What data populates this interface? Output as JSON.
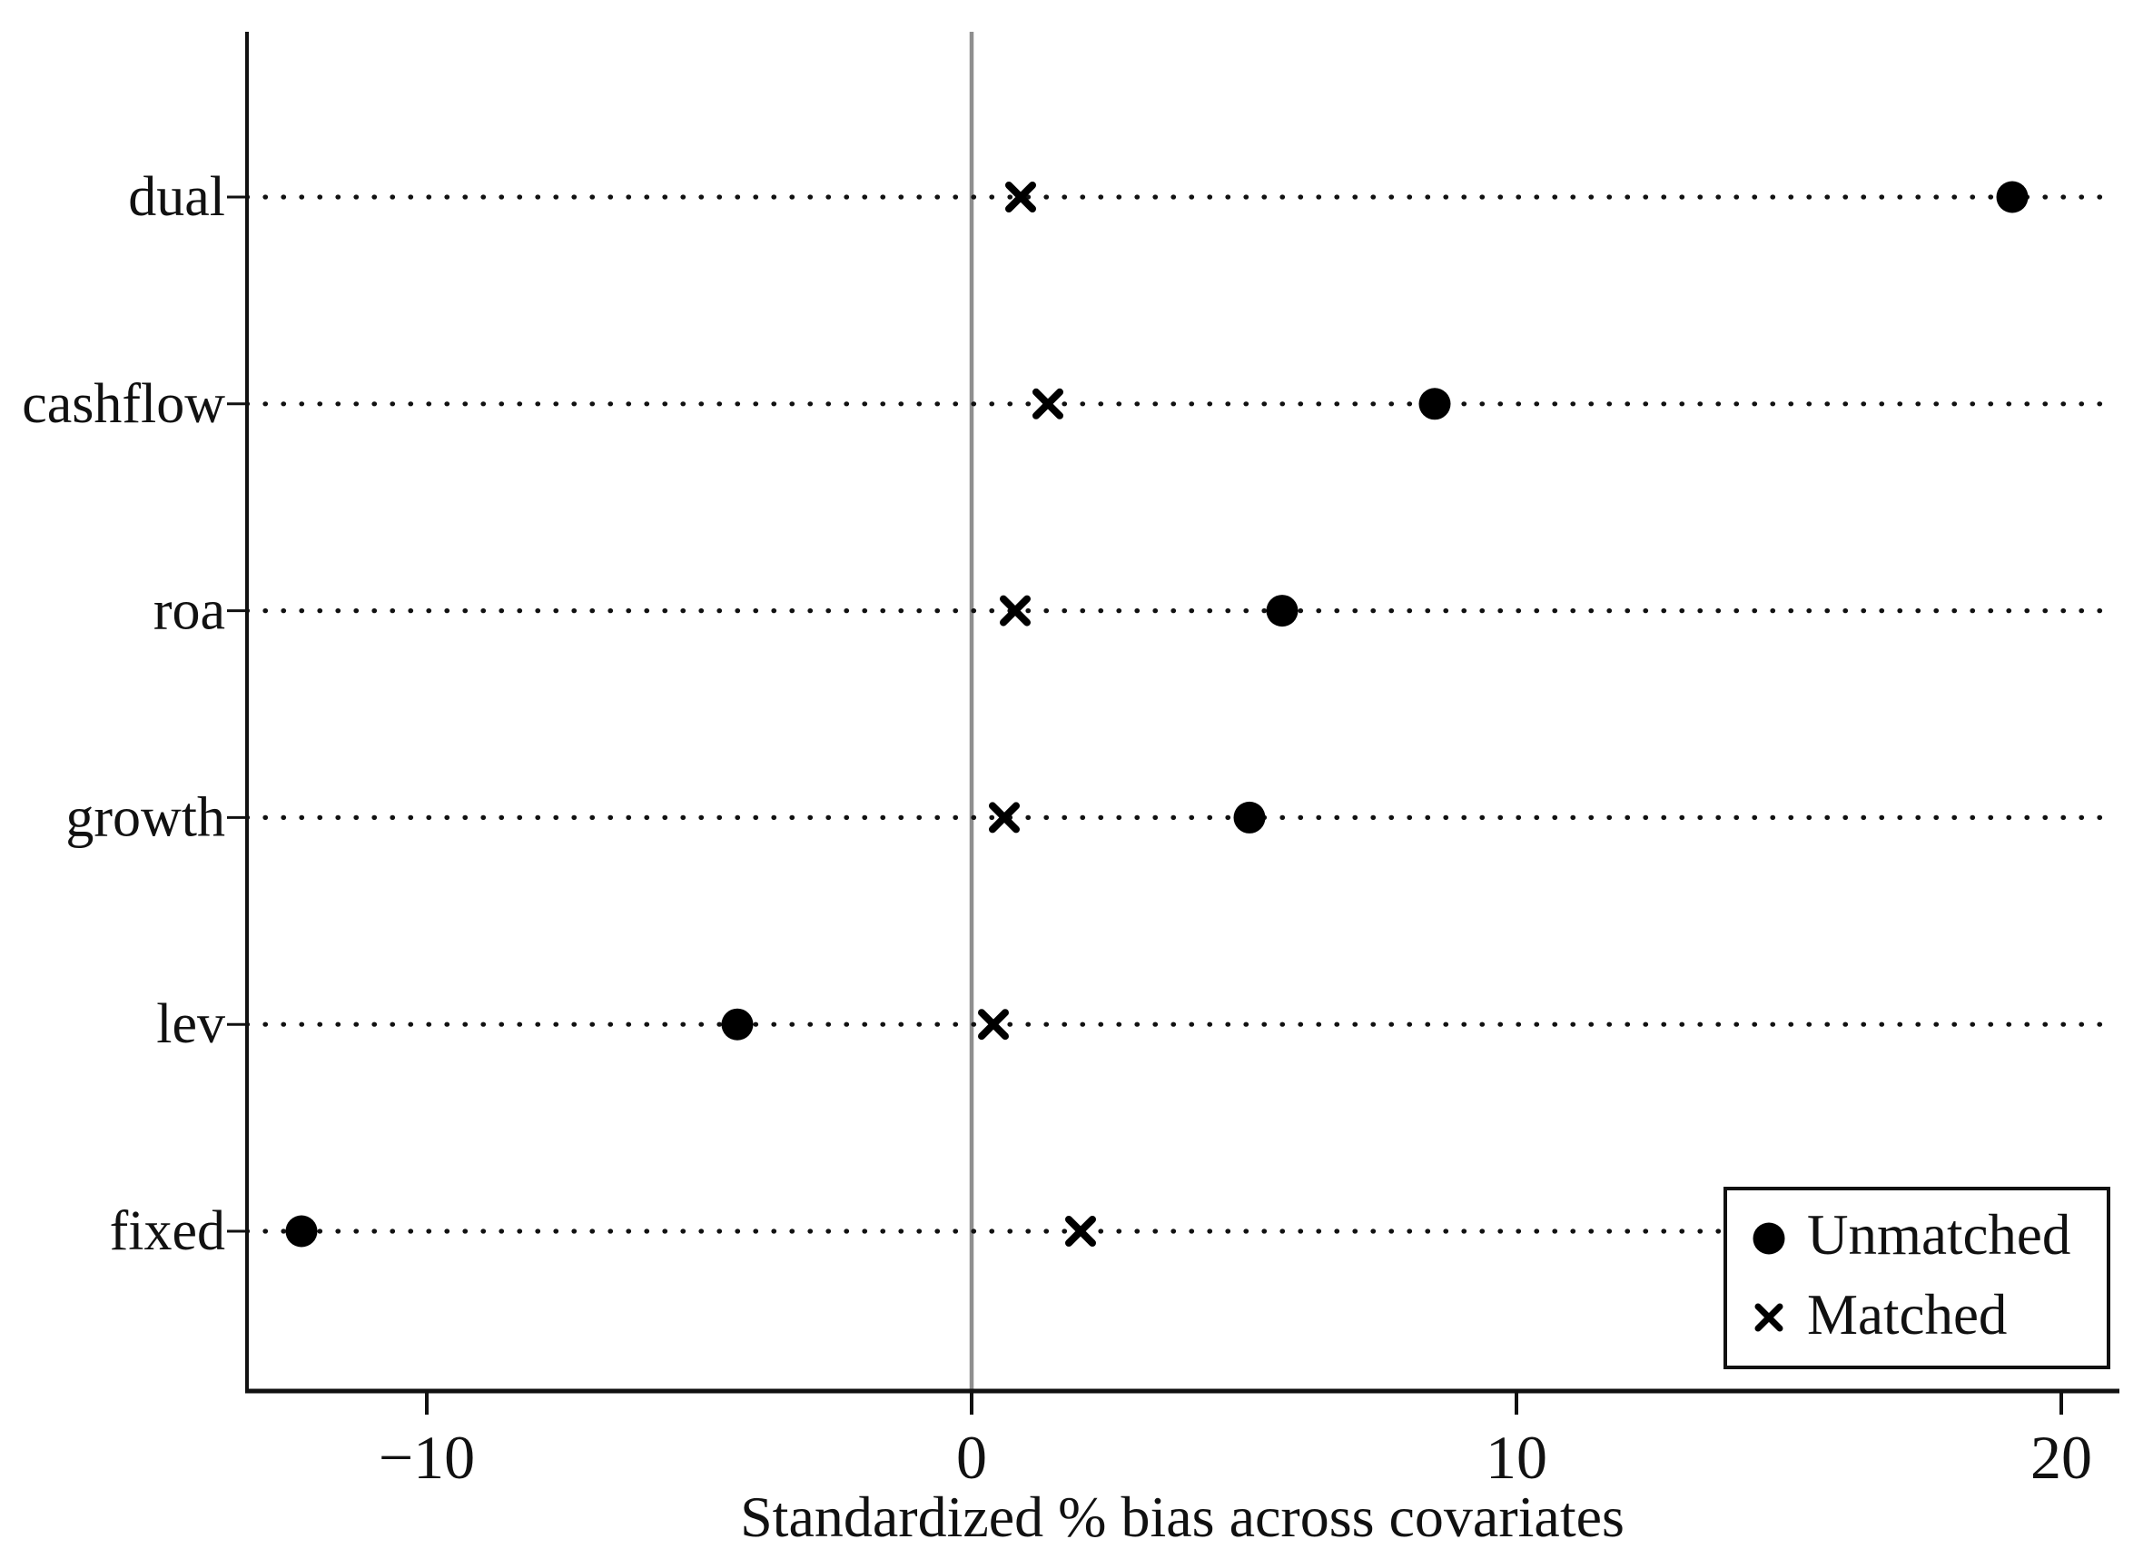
{
  "figure": {
    "background": "#ffffff"
  },
  "chart_data": {
    "type": "scatter",
    "title": "",
    "xlabel": "Standardized % bias across covariates",
    "ylabel": "",
    "categories": [
      "dual",
      "cashflow",
      "roa",
      "growth",
      "lev",
      "fixed"
    ],
    "series": [
      {
        "name": "Unmatched",
        "marker": "circle",
        "values": [
          19.1,
          8.5,
          5.7,
          5.1,
          -4.3,
          -12.3
        ]
      },
      {
        "name": "Matched",
        "marker": "x",
        "values": [
          0.9,
          1.4,
          0.8,
          0.6,
          0.4,
          2.0
        ]
      }
    ],
    "x_ticks": [
      -10,
      0,
      10,
      20
    ],
    "x_tick_labels": [
      "−10",
      "0",
      "10",
      "20"
    ],
    "xlim": [
      -13.3,
      20.8
    ],
    "zero_reference_line": 0,
    "grid": "dotted-horizontal",
    "legend_position": "bottom-right",
    "colors": {
      "marker": "#000000",
      "axis": "#111111",
      "zero_line": "#8f8f8f",
      "dotted_line": "#111111",
      "background": "#ffffff"
    }
  }
}
